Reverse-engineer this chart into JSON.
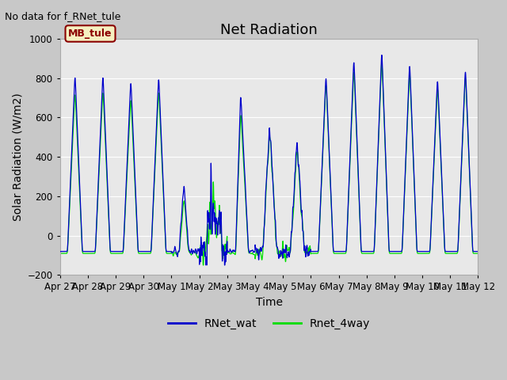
{
  "title": "Net Radiation",
  "xlabel": "Time",
  "ylabel": "Solar Radiation (W/m2)",
  "annotation": "No data for f_RNet_tule",
  "legend_label": "MB_tule",
  "series1_label": "RNet_wat",
  "series2_label": "Rnet_4way",
  "series1_color": "#0000cc",
  "series2_color": "#00dd00",
  "ylim": [
    -200,
    1000
  ],
  "yticks": [
    -200,
    0,
    200,
    400,
    600,
    800,
    1000
  ],
  "fig_bg_color": "#c8c8c8",
  "plot_bg_color": "#e8e8e8",
  "title_fontsize": 13,
  "label_fontsize": 10,
  "tick_fontsize": 8.5
}
